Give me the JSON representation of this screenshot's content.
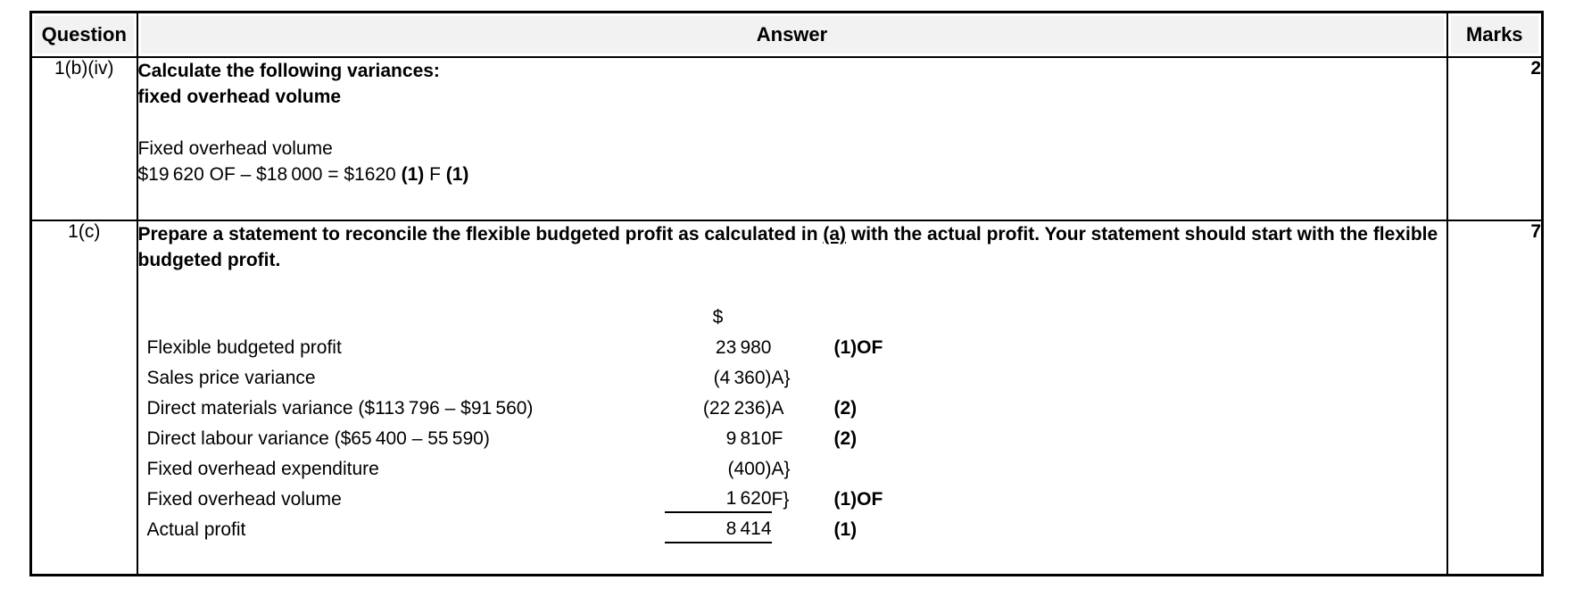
{
  "header": {
    "question": "Question",
    "answer": "Answer",
    "marks": "Marks"
  },
  "rows": [
    {
      "question": "1(b)(iv)",
      "marks": "2",
      "prompt_line1": "Calculate the following variances:",
      "prompt_line2": "fixed overhead volume",
      "body_label": "Fixed overhead volume",
      "working": [
        {
          "text": "$19 620 OF – $18 000 = $1620 ",
          "bold": false
        },
        {
          "text": "(1)",
          "bold": true
        },
        {
          "text": " F ",
          "bold": false
        },
        {
          "text": "(1)",
          "bold": true
        }
      ]
    },
    {
      "question": "1(c)",
      "marks": "7",
      "prompt_segments": [
        {
          "text": "Prepare a statement to reconcile the flexible budgeted profit as calculated in ",
          "bold": true,
          "underline": false
        },
        {
          "text": "(a)",
          "bold": true,
          "underline": true
        },
        {
          "text": " with the actual profit. Your statement should start with the flexible budgeted profit.",
          "bold": true,
          "underline": false
        }
      ],
      "statement": {
        "currency_header": "$",
        "lines": [
          {
            "label": "Flexible budgeted profit",
            "amount": "23 980",
            "letter": "",
            "mark": "(1)OF",
            "underline": false
          },
          {
            "label": "Sales price variance",
            "amount": "(4 360)",
            "letter": "A}",
            "mark": "",
            "underline": false
          },
          {
            "label": "Direct materials variance ($113 796 – $91 560)",
            "amount": "(22 236)",
            "letter": "A",
            "mark": "(2)",
            "underline": false
          },
          {
            "label": "Direct labour variance ($65 400 – 55 590)",
            "amount": "9 810",
            "letter": "F",
            "mark": "(2)",
            "underline": false
          },
          {
            "label": "Fixed overhead expenditure",
            "amount": "(400)",
            "letter": "A}",
            "mark": "",
            "underline": false
          },
          {
            "label": "Fixed overhead volume",
            "amount": "1 620",
            "letter": "F}",
            "mark": "(1)OF",
            "underline": true
          },
          {
            "label": "Actual profit",
            "amount": "8 414",
            "letter": "",
            "mark": "(1)",
            "underline": true
          }
        ]
      }
    }
  ]
}
